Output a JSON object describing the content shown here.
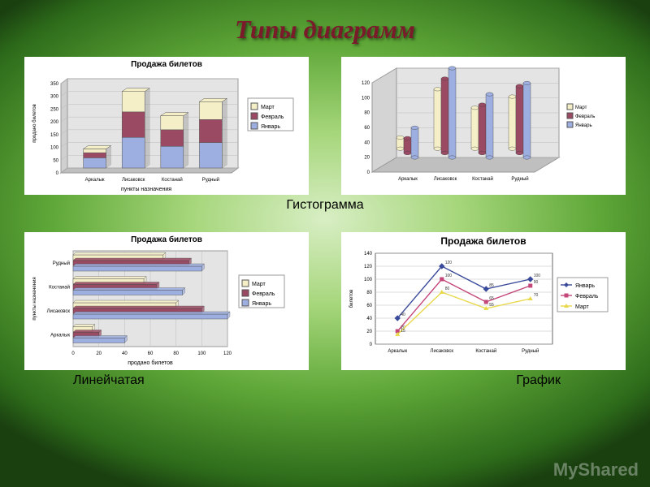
{
  "title": "Типы диаграмм",
  "watermark": "MyShared",
  "labels": {
    "histogram": "Гистограмма",
    "bar": "Линейчатая",
    "line": "График"
  },
  "months": {
    "jan": "Январь",
    "feb": "Февраль",
    "mar": "Март"
  },
  "colors": {
    "jan": "#9daee0",
    "feb": "#9b4a63",
    "mar": "#f5efc8",
    "line_jan": "#3a4a9a",
    "line_feb": "#c4477a",
    "line_mar": "#e8d84a",
    "grid": "#c0c0c0",
    "axis": "#000000",
    "wall3d": "#e4e4e4",
    "floor3d": "#bfbfbf"
  },
  "categories": [
    "Аркалык",
    "Лисаковск",
    "Костанай",
    "Рудный"
  ],
  "chart1": {
    "type": "stacked-3d-column",
    "title": "Продажа билетов",
    "xlabel": "пункты назначения",
    "ylabel": "продано билетов",
    "ymax": 350,
    "ytick": 50,
    "series": {
      "jan": [
        40,
        120,
        85,
        100
      ],
      "feb": [
        20,
        100,
        65,
        90
      ],
      "mar": [
        15,
        80,
        55,
        70
      ]
    }
  },
  "chart2": {
    "type": "3d-cylinder",
    "ymax": 120,
    "ytick": 20,
    "series": {
      "jan": [
        40,
        120,
        85,
        100
      ],
      "feb": [
        20,
        100,
        65,
        90
      ],
      "mar": [
        15,
        80,
        55,
        70
      ]
    }
  },
  "chart3": {
    "type": "horizontal-bar",
    "title": "Продажа билетов",
    "xlabel": "продано билетов",
    "ylabel": "пункты назначения",
    "xmax": 120,
    "xtick": 20,
    "series": {
      "jan": [
        40,
        120,
        85,
        100
      ],
      "feb": [
        20,
        100,
        65,
        90
      ],
      "mar": [
        15,
        80,
        55,
        70
      ]
    }
  },
  "chart4": {
    "type": "line",
    "title": "Продажа билетов",
    "title_fontsize": 12,
    "ylabel": "билетов",
    "ymax": 140,
    "ytick": 20,
    "series": {
      "jan": [
        40,
        120,
        85,
        100
      ],
      "feb": [
        20,
        100,
        65,
        90
      ],
      "mar": [
        15,
        80,
        55,
        70
      ]
    }
  }
}
